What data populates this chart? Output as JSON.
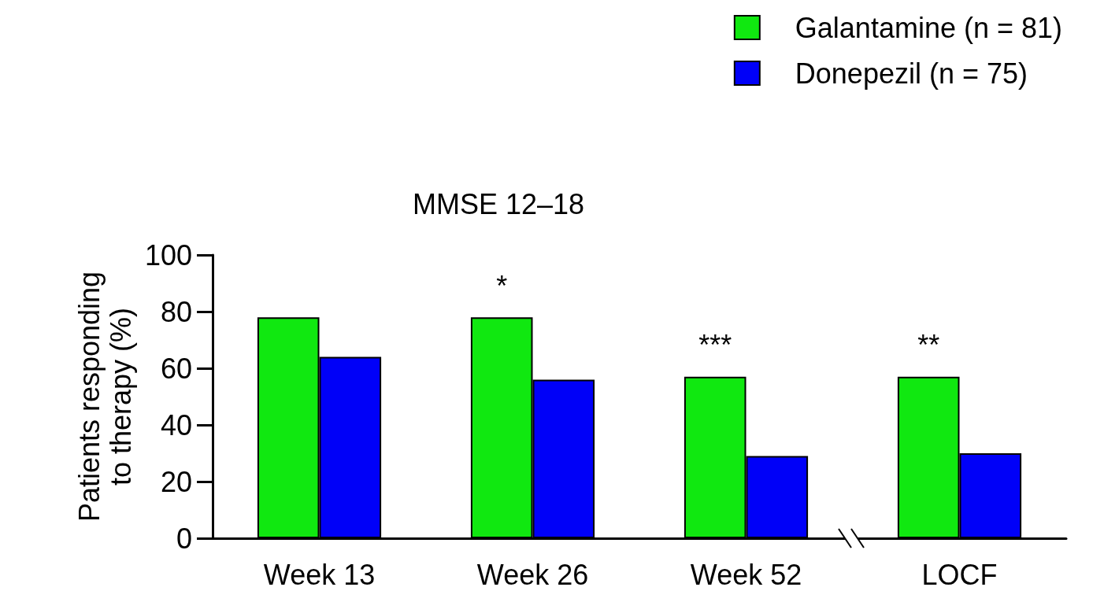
{
  "chart_data": {
    "type": "bar",
    "title": "MMSE 12–18",
    "ylabel": "Patients responding\nto therapy (%)",
    "categories": [
      "Week 13",
      "Week 26",
      "Week 52",
      "LOCF"
    ],
    "series": [
      {
        "name": "Galantamine (n = 81)",
        "color": "#10e810",
        "values": [
          78,
          78,
          57,
          57
        ]
      },
      {
        "name": "Donepezil (n = 75)",
        "color": "#0000f8",
        "values": [
          64,
          56,
          29,
          30
        ]
      }
    ],
    "ylim": [
      0,
      100
    ],
    "yticks": [
      0,
      20,
      40,
      60,
      80,
      100
    ],
    "grid": false,
    "legend": "top right",
    "annotations": [
      {
        "text": "*",
        "x": "Week 26",
        "y": 78
      },
      {
        "text": "***",
        "x": "Week 52",
        "y": 57
      },
      {
        "text": "**",
        "x": "LOCF",
        "y": 57
      }
    ]
  }
}
